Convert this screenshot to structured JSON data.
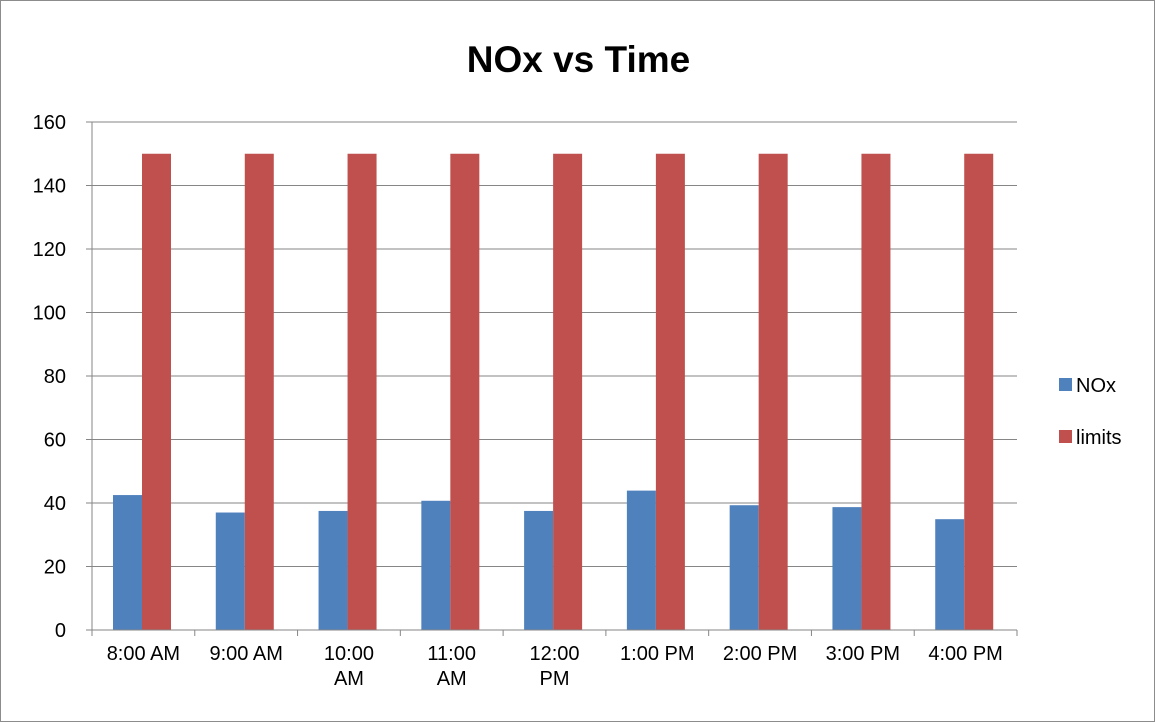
{
  "chart_data": {
    "type": "bar",
    "title": "NOx vs Time",
    "xlabel": "",
    "ylabel": "",
    "categories": [
      [
        "8:00 AM"
      ],
      [
        "9:00 AM"
      ],
      [
        "10:00",
        "AM"
      ],
      [
        "11:00",
        "AM"
      ],
      [
        "12:00",
        "PM"
      ],
      [
        "1:00 PM"
      ],
      [
        "2:00 PM"
      ],
      [
        "3:00 PM"
      ],
      [
        "4:00 PM"
      ]
    ],
    "series": [
      {
        "name": "NOx",
        "color": "#4f81bd",
        "values": [
          42.5,
          37,
          37.5,
          40.7,
          37.5,
          43.9,
          39.3,
          38.7,
          34.9
        ]
      },
      {
        "name": "limits",
        "color": "#c0504d",
        "values": [
          150,
          150,
          150,
          150,
          150,
          150,
          150,
          150,
          150
        ]
      }
    ],
    "ylim": [
      0,
      160
    ],
    "yticks": [
      0,
      20,
      40,
      60,
      80,
      100,
      120,
      140,
      160
    ],
    "grid": true,
    "legend_position": "right"
  }
}
